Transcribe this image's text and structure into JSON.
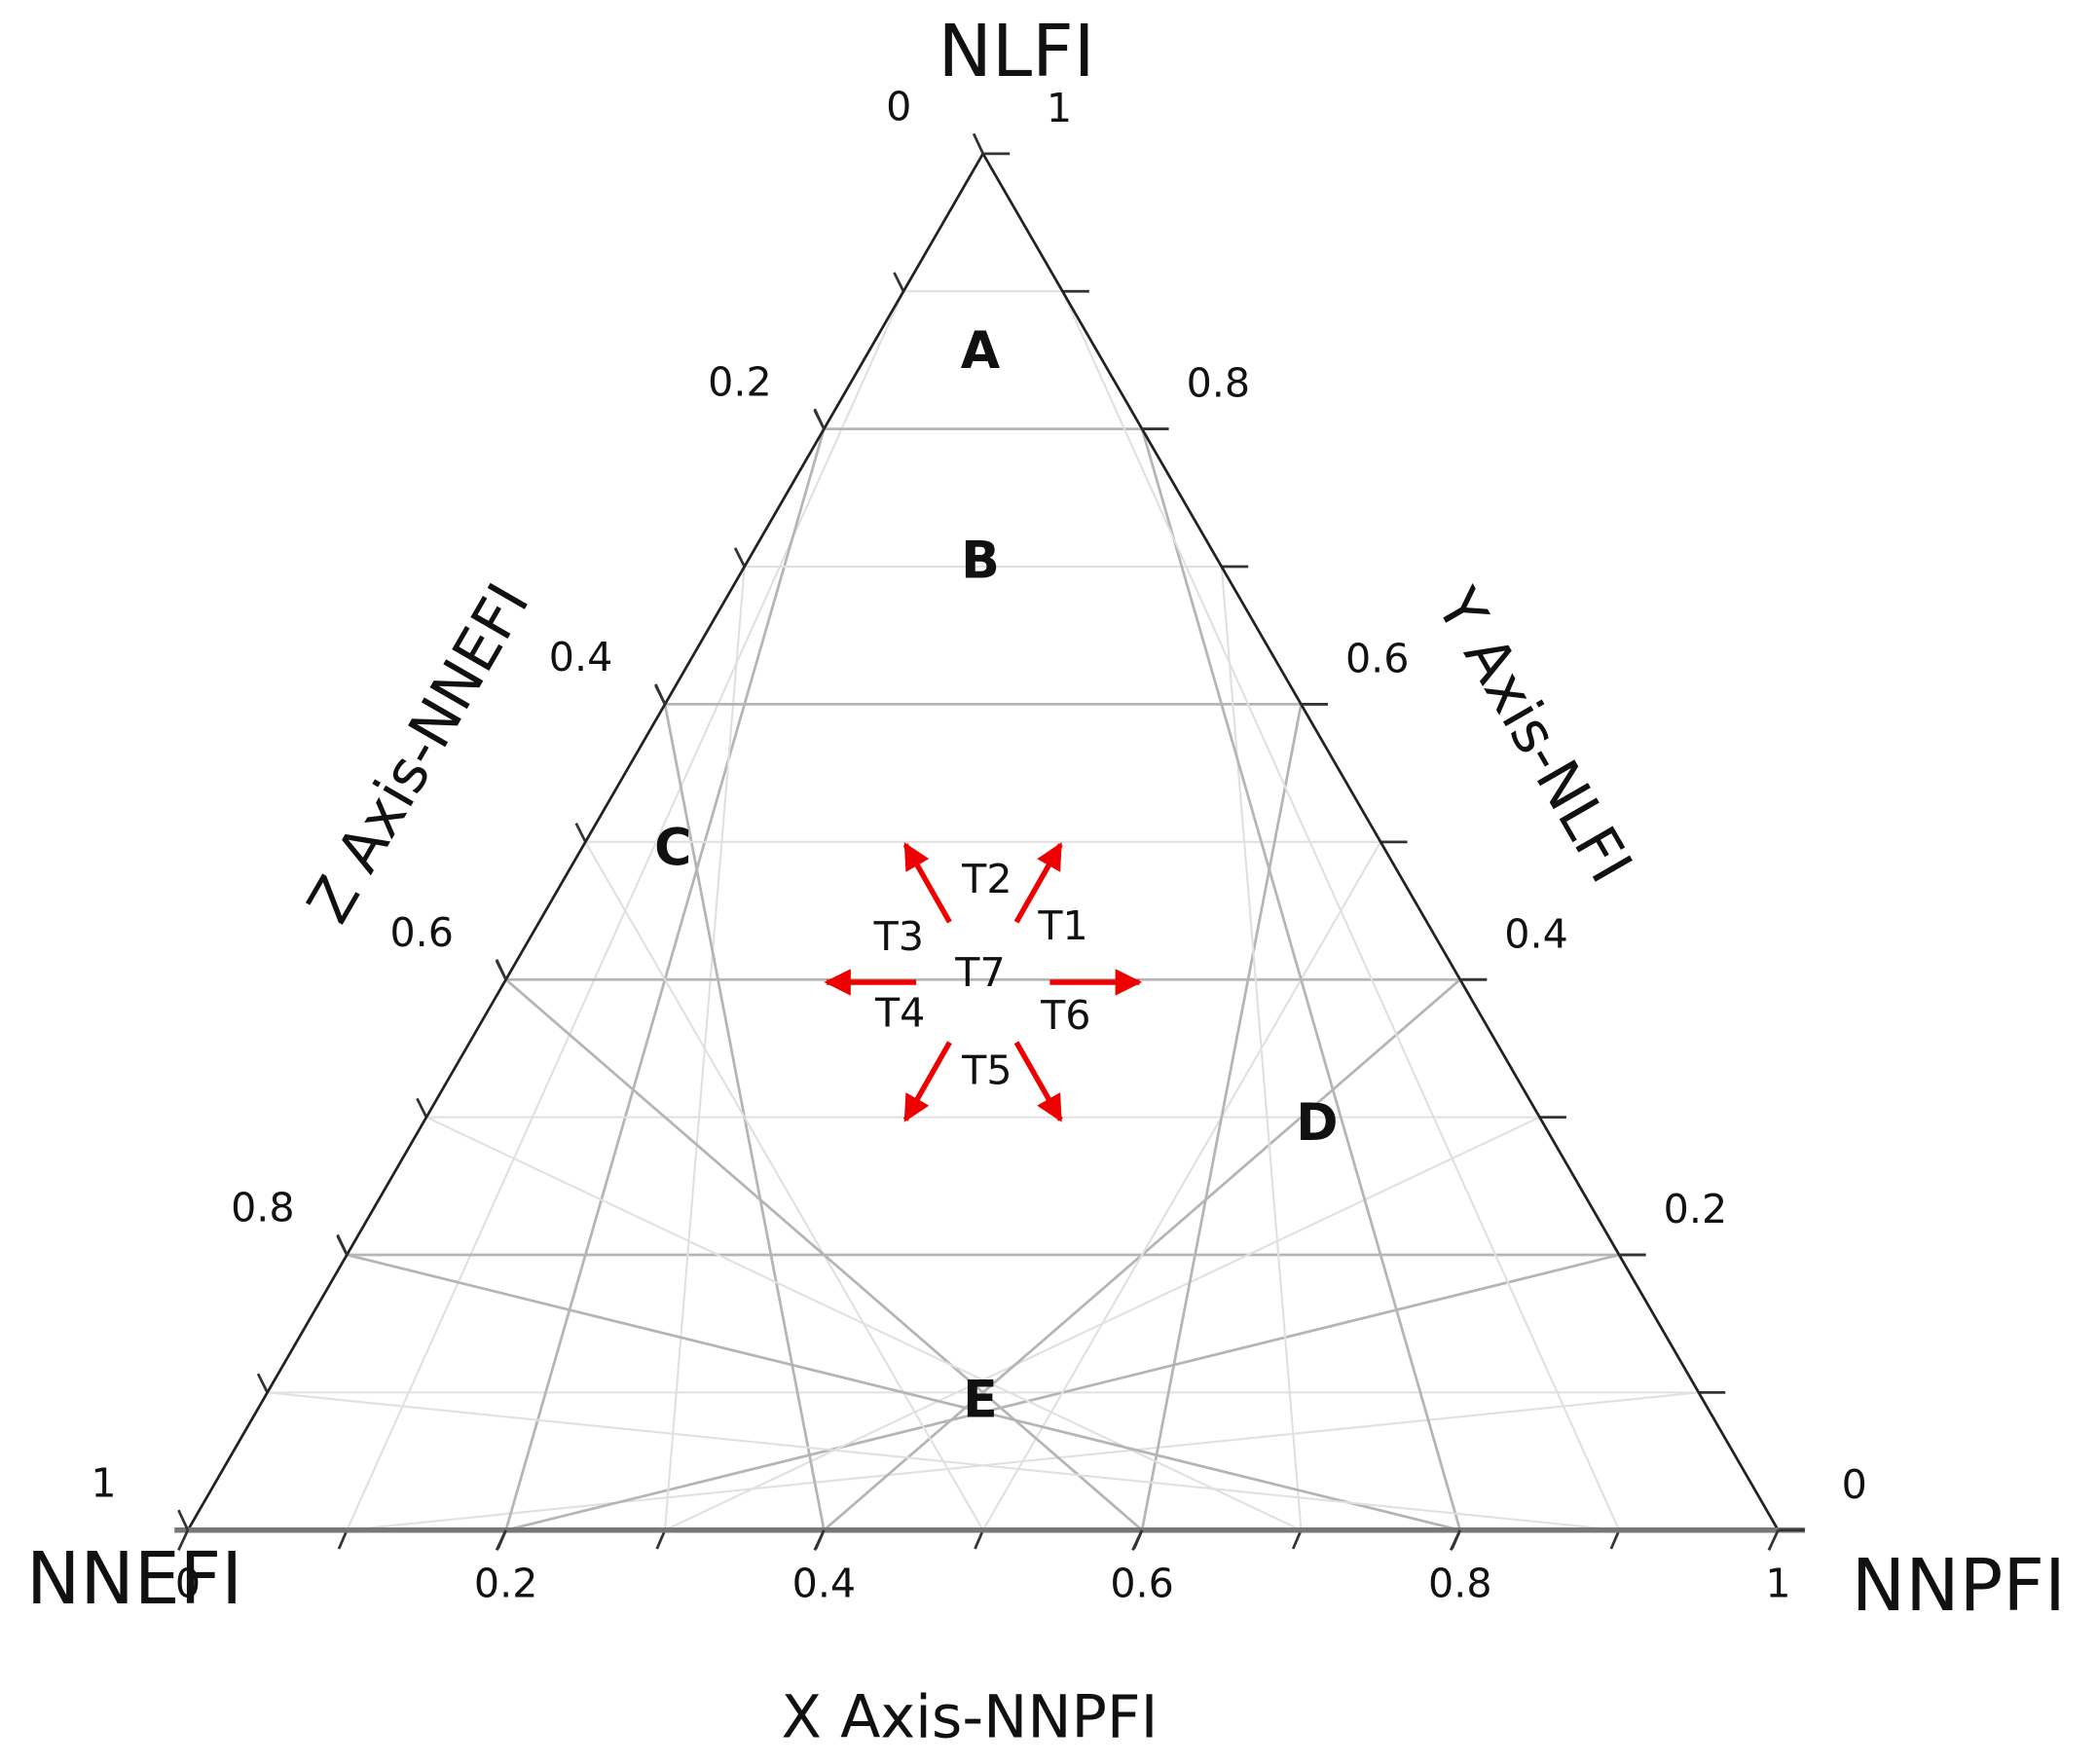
{
  "corners": {
    "top": "NLFI",
    "left": "NNEFI",
    "right": "NNPFI"
  },
  "x_axis": {
    "title": "X Axis-NNPFI",
    "ticks": [
      0,
      0.2,
      0.4,
      0.6,
      0.8,
      1
    ]
  },
  "y_axis": {
    "title": "Y Axis-NLFI",
    "ticks": [
      0,
      0.2,
      0.4,
      0.6,
      0.8,
      1
    ]
  },
  "z_axis": {
    "title": "Z Axis-NNEFI",
    "ticks": [
      0,
      0.2,
      0.4,
      0.6,
      0.8,
      1
    ]
  },
  "regions": [
    "A",
    "B",
    "C",
    "D",
    "E"
  ],
  "transitions": [
    "T1",
    "T2",
    "T3",
    "T4",
    "T5",
    "T6",
    "T7"
  ]
}
